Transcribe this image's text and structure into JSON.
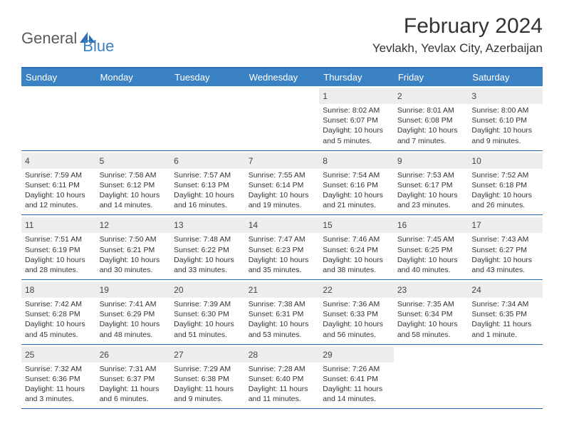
{
  "logo": {
    "text1": "General",
    "text2": "Blue"
  },
  "title": "February 2024",
  "location": "Yevlakh, Yevlax City, Azerbaijan",
  "colors": {
    "header_bar": "#3b82c4",
    "border": "#2a6db5",
    "logo_gray": "#5b5b5b",
    "logo_blue": "#3b7fc4",
    "daynum_bg": "#ededed"
  },
  "day_names": [
    "Sunday",
    "Monday",
    "Tuesday",
    "Wednesday",
    "Thursday",
    "Friday",
    "Saturday"
  ],
  "weeks": [
    [
      {
        "empty": true
      },
      {
        "empty": true
      },
      {
        "empty": true
      },
      {
        "empty": true
      },
      {
        "day": "1",
        "sunrise": "Sunrise: 8:02 AM",
        "sunset": "Sunset: 6:07 PM",
        "daylight1": "Daylight: 10 hours",
        "daylight2": "and 5 minutes."
      },
      {
        "day": "2",
        "sunrise": "Sunrise: 8:01 AM",
        "sunset": "Sunset: 6:08 PM",
        "daylight1": "Daylight: 10 hours",
        "daylight2": "and 7 minutes."
      },
      {
        "day": "3",
        "sunrise": "Sunrise: 8:00 AM",
        "sunset": "Sunset: 6:10 PM",
        "daylight1": "Daylight: 10 hours",
        "daylight2": "and 9 minutes."
      }
    ],
    [
      {
        "day": "4",
        "sunrise": "Sunrise: 7:59 AM",
        "sunset": "Sunset: 6:11 PM",
        "daylight1": "Daylight: 10 hours",
        "daylight2": "and 12 minutes."
      },
      {
        "day": "5",
        "sunrise": "Sunrise: 7:58 AM",
        "sunset": "Sunset: 6:12 PM",
        "daylight1": "Daylight: 10 hours",
        "daylight2": "and 14 minutes."
      },
      {
        "day": "6",
        "sunrise": "Sunrise: 7:57 AM",
        "sunset": "Sunset: 6:13 PM",
        "daylight1": "Daylight: 10 hours",
        "daylight2": "and 16 minutes."
      },
      {
        "day": "7",
        "sunrise": "Sunrise: 7:55 AM",
        "sunset": "Sunset: 6:14 PM",
        "daylight1": "Daylight: 10 hours",
        "daylight2": "and 19 minutes."
      },
      {
        "day": "8",
        "sunrise": "Sunrise: 7:54 AM",
        "sunset": "Sunset: 6:16 PM",
        "daylight1": "Daylight: 10 hours",
        "daylight2": "and 21 minutes."
      },
      {
        "day": "9",
        "sunrise": "Sunrise: 7:53 AM",
        "sunset": "Sunset: 6:17 PM",
        "daylight1": "Daylight: 10 hours",
        "daylight2": "and 23 minutes."
      },
      {
        "day": "10",
        "sunrise": "Sunrise: 7:52 AM",
        "sunset": "Sunset: 6:18 PM",
        "daylight1": "Daylight: 10 hours",
        "daylight2": "and 26 minutes."
      }
    ],
    [
      {
        "day": "11",
        "sunrise": "Sunrise: 7:51 AM",
        "sunset": "Sunset: 6:19 PM",
        "daylight1": "Daylight: 10 hours",
        "daylight2": "and 28 minutes."
      },
      {
        "day": "12",
        "sunrise": "Sunrise: 7:50 AM",
        "sunset": "Sunset: 6:21 PM",
        "daylight1": "Daylight: 10 hours",
        "daylight2": "and 30 minutes."
      },
      {
        "day": "13",
        "sunrise": "Sunrise: 7:48 AM",
        "sunset": "Sunset: 6:22 PM",
        "daylight1": "Daylight: 10 hours",
        "daylight2": "and 33 minutes."
      },
      {
        "day": "14",
        "sunrise": "Sunrise: 7:47 AM",
        "sunset": "Sunset: 6:23 PM",
        "daylight1": "Daylight: 10 hours",
        "daylight2": "and 35 minutes."
      },
      {
        "day": "15",
        "sunrise": "Sunrise: 7:46 AM",
        "sunset": "Sunset: 6:24 PM",
        "daylight1": "Daylight: 10 hours",
        "daylight2": "and 38 minutes."
      },
      {
        "day": "16",
        "sunrise": "Sunrise: 7:45 AM",
        "sunset": "Sunset: 6:25 PM",
        "daylight1": "Daylight: 10 hours",
        "daylight2": "and 40 minutes."
      },
      {
        "day": "17",
        "sunrise": "Sunrise: 7:43 AM",
        "sunset": "Sunset: 6:27 PM",
        "daylight1": "Daylight: 10 hours",
        "daylight2": "and 43 minutes."
      }
    ],
    [
      {
        "day": "18",
        "sunrise": "Sunrise: 7:42 AM",
        "sunset": "Sunset: 6:28 PM",
        "daylight1": "Daylight: 10 hours",
        "daylight2": "and 45 minutes."
      },
      {
        "day": "19",
        "sunrise": "Sunrise: 7:41 AM",
        "sunset": "Sunset: 6:29 PM",
        "daylight1": "Daylight: 10 hours",
        "daylight2": "and 48 minutes."
      },
      {
        "day": "20",
        "sunrise": "Sunrise: 7:39 AM",
        "sunset": "Sunset: 6:30 PM",
        "daylight1": "Daylight: 10 hours",
        "daylight2": "and 51 minutes."
      },
      {
        "day": "21",
        "sunrise": "Sunrise: 7:38 AM",
        "sunset": "Sunset: 6:31 PM",
        "daylight1": "Daylight: 10 hours",
        "daylight2": "and 53 minutes."
      },
      {
        "day": "22",
        "sunrise": "Sunrise: 7:36 AM",
        "sunset": "Sunset: 6:33 PM",
        "daylight1": "Daylight: 10 hours",
        "daylight2": "and 56 minutes."
      },
      {
        "day": "23",
        "sunrise": "Sunrise: 7:35 AM",
        "sunset": "Sunset: 6:34 PM",
        "daylight1": "Daylight: 10 hours",
        "daylight2": "and 58 minutes."
      },
      {
        "day": "24",
        "sunrise": "Sunrise: 7:34 AM",
        "sunset": "Sunset: 6:35 PM",
        "daylight1": "Daylight: 11 hours",
        "daylight2": "and 1 minute."
      }
    ],
    [
      {
        "day": "25",
        "sunrise": "Sunrise: 7:32 AM",
        "sunset": "Sunset: 6:36 PM",
        "daylight1": "Daylight: 11 hours",
        "daylight2": "and 3 minutes."
      },
      {
        "day": "26",
        "sunrise": "Sunrise: 7:31 AM",
        "sunset": "Sunset: 6:37 PM",
        "daylight1": "Daylight: 11 hours",
        "daylight2": "and 6 minutes."
      },
      {
        "day": "27",
        "sunrise": "Sunrise: 7:29 AM",
        "sunset": "Sunset: 6:38 PM",
        "daylight1": "Daylight: 11 hours",
        "daylight2": "and 9 minutes."
      },
      {
        "day": "28",
        "sunrise": "Sunrise: 7:28 AM",
        "sunset": "Sunset: 6:40 PM",
        "daylight1": "Daylight: 11 hours",
        "daylight2": "and 11 minutes."
      },
      {
        "day": "29",
        "sunrise": "Sunrise: 7:26 AM",
        "sunset": "Sunset: 6:41 PM",
        "daylight1": "Daylight: 11 hours",
        "daylight2": "and 14 minutes."
      },
      {
        "empty": true
      },
      {
        "empty": true
      }
    ]
  ]
}
